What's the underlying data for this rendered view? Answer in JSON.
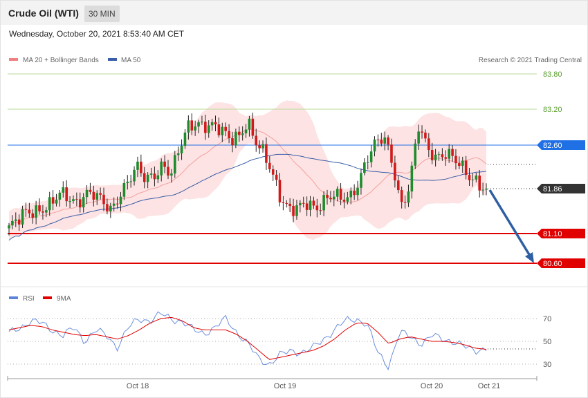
{
  "header": {
    "title": "Crude Oil (WTI)",
    "timeframe": "30 MIN",
    "datetime": "Wednesday, October 20, 2021 8:53:40 AM CET"
  },
  "price_chart": {
    "legend": [
      {
        "name": "MA 20 + Bollinger Bands",
        "color": "#f08080"
      },
      {
        "name": "MA 50",
        "color": "#3a5ea8"
      }
    ],
    "credit": "Research © 2021 Trading Central",
    "levels": [
      {
        "value": "83.80",
        "type": "resistance-light",
        "color": "#7ab648"
      },
      {
        "value": "83.20",
        "type": "resistance-light",
        "color": "#7ab648"
      },
      {
        "value": "82.60",
        "type": "pivot",
        "color": "#1f6fe5"
      },
      {
        "value": "81.86",
        "type": "last-price",
        "color": "#333333"
      },
      {
        "value": "81.10",
        "type": "support",
        "color": "#e00000"
      },
      {
        "value": "80.60",
        "type": "support",
        "color": "#e00000"
      }
    ]
  },
  "rsi_chart": {
    "legend": [
      {
        "name": "RSI",
        "color": "#5a84d8"
      },
      {
        "name": "9MA",
        "color": "#e00000"
      }
    ],
    "ticks": [
      "70",
      "50",
      "30"
    ]
  },
  "x_axis": {
    "labels": [
      "Oct 18",
      "Oct 19",
      "Oct 20",
      "Oct 21"
    ]
  },
  "chart_data": {
    "type": "candlestick",
    "title": "Crude Oil (WTI)",
    "timeframe": "30 MIN",
    "ylim": [
      80.3,
      84.0
    ],
    "x_labels": [
      "Oct 18",
      "Oct 19",
      "Oct 20",
      "Oct 21"
    ],
    "key_levels": [
      83.8,
      83.2,
      82.6,
      81.86,
      81.1,
      80.6
    ],
    "last_price": 81.86,
    "forecast_arrow": {
      "from": 81.86,
      "to": 80.6,
      "direction": "down"
    },
    "price_close_approx": [
      81.2,
      81.3,
      81.45,
      81.5,
      81.55,
      81.6,
      81.75,
      81.7,
      81.65,
      81.8,
      81.75,
      81.6,
      81.5,
      81.8,
      82.0,
      82.2,
      82.0,
      82.1,
      82.3,
      82.1,
      82.5,
      82.9,
      83.0,
      82.95,
      82.9,
      82.8,
      82.7,
      82.8,
      83.0,
      82.6,
      82.4,
      82.1,
      81.7,
      81.5,
      81.5,
      81.6,
      81.55,
      81.7,
      81.75,
      81.65,
      81.7,
      82.0,
      82.4,
      82.6,
      82.7,
      82.3,
      81.6,
      81.9,
      82.9,
      82.55,
      82.4,
      82.5,
      82.4,
      82.2,
      82.05,
      82.0,
      81.86
    ],
    "rsi": {
      "ylim": [
        20,
        80
      ],
      "ticks": [
        70,
        50,
        30
      ],
      "rsi_approx": [
        57,
        62,
        68,
        66,
        60,
        55,
        62,
        50,
        60,
        55,
        45,
        62,
        70,
        68,
        74,
        70,
        67,
        60,
        57,
        62,
        70,
        58,
        48,
        35,
        30,
        38,
        42,
        40,
        44,
        52,
        60,
        68,
        70,
        65,
        40,
        28,
        58,
        54,
        48,
        55,
        52,
        50,
        45,
        42,
        44
      ],
      "ma9_approx": [
        60,
        62,
        64,
        63,
        60,
        58,
        56,
        55,
        56,
        54,
        52,
        55,
        60,
        66,
        70,
        71,
        68,
        62,
        60,
        60,
        60,
        56,
        50,
        42,
        34,
        36,
        38,
        40,
        42,
        46,
        52,
        60,
        66,
        66,
        58,
        48,
        52,
        54,
        52,
        50,
        50,
        49,
        47,
        44,
        43
      ]
    }
  }
}
